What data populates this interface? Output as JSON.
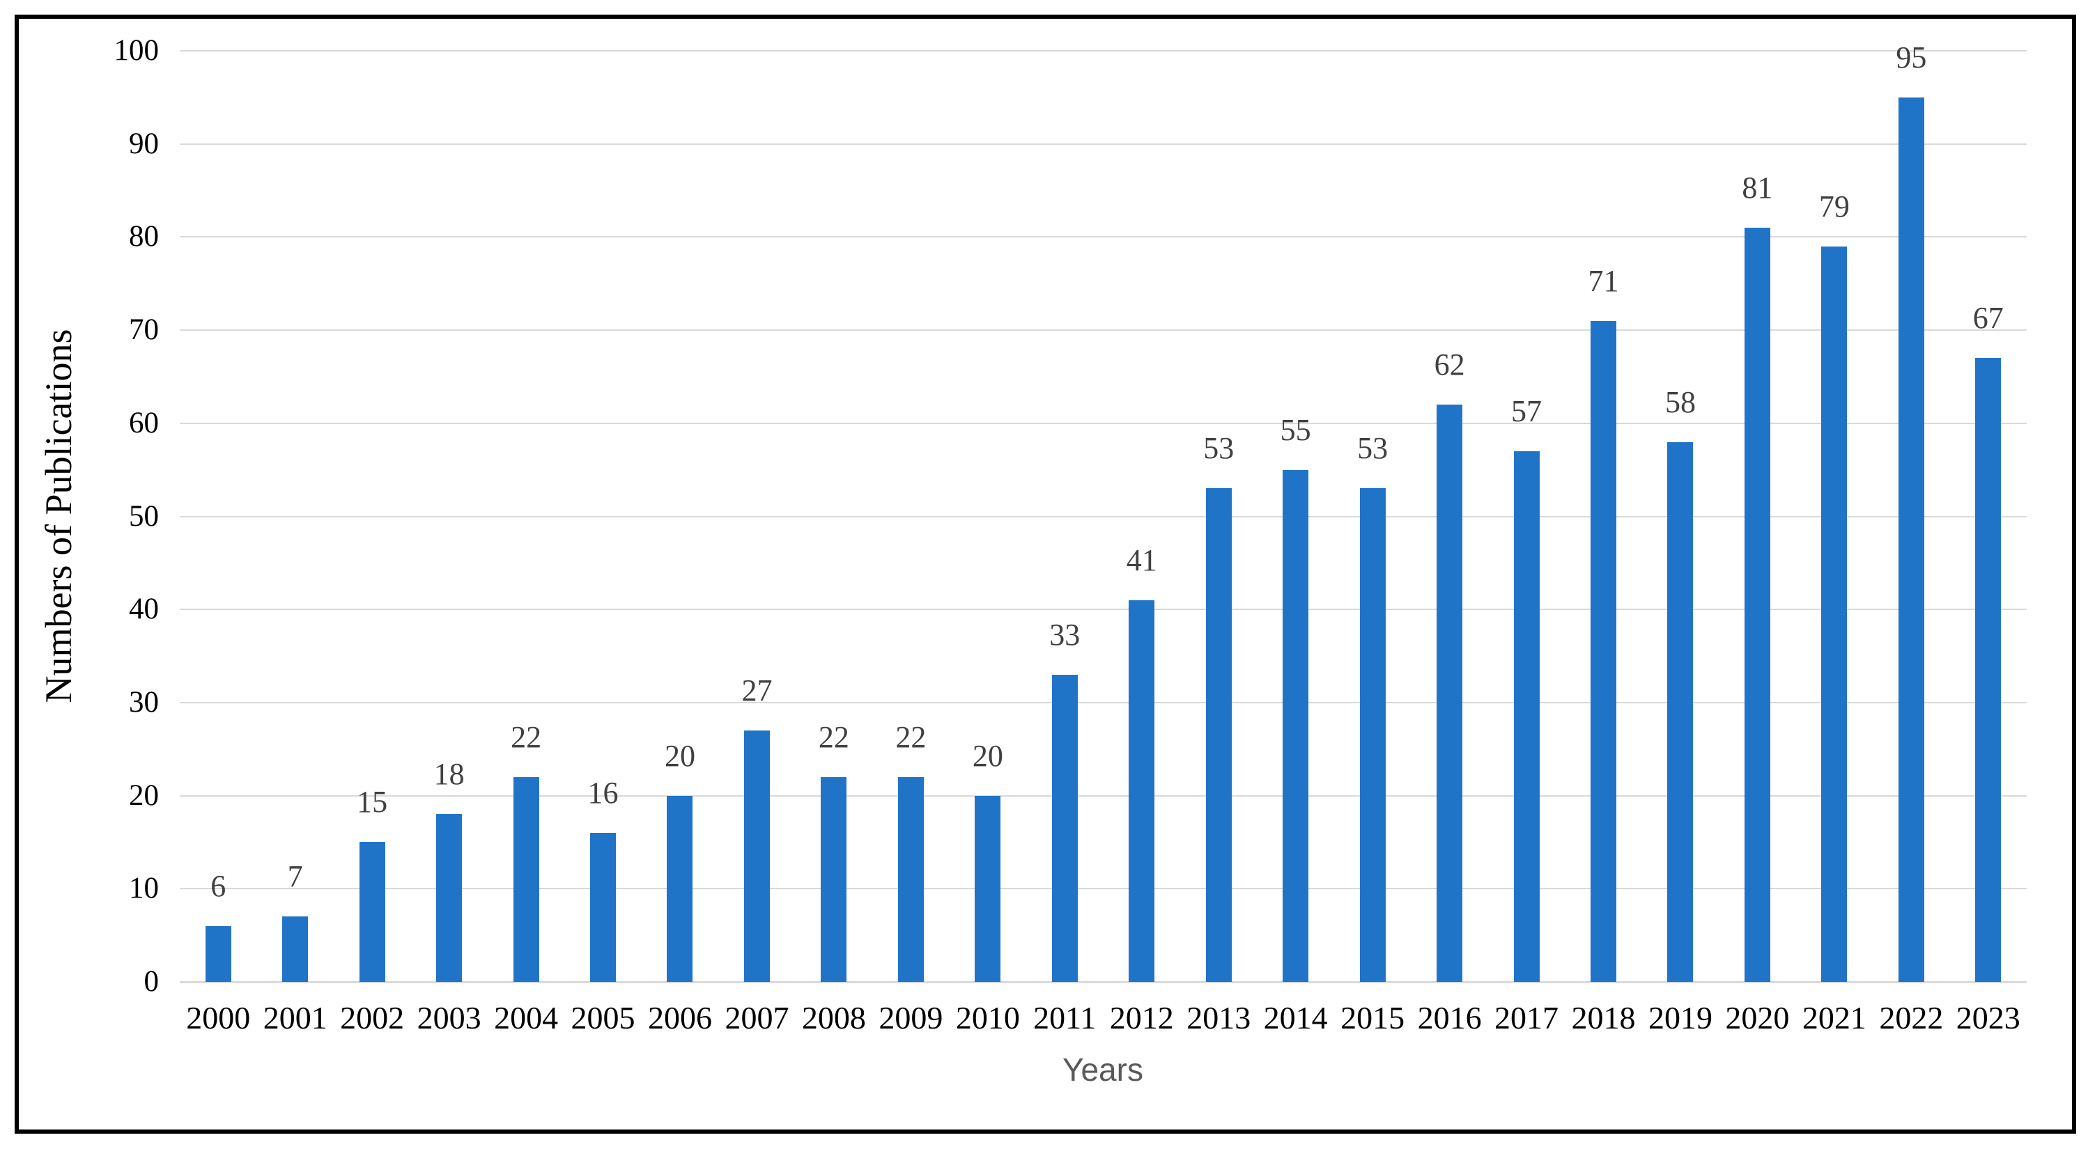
{
  "chart_data": {
    "type": "bar",
    "title": "",
    "categories": [
      "2000",
      "2001",
      "2002",
      "2003",
      "2004",
      "2005",
      "2006",
      "2007",
      "2008",
      "2009",
      "2010",
      "2011",
      "2012",
      "2013",
      "2014",
      "2015",
      "2016",
      "2017",
      "2018",
      "2019",
      "2020",
      "2021",
      "2022",
      "2023"
    ],
    "values": [
      6,
      7,
      15,
      18,
      22,
      16,
      20,
      27,
      22,
      22,
      20,
      33,
      41,
      53,
      55,
      53,
      62,
      57,
      71,
      58,
      81,
      79,
      95,
      67
    ],
    "xlabel": "Years",
    "ylabel": "Numbers of Publications",
    "ylim": [
      0,
      100
    ],
    "ytick_step": 10,
    "yticks": [
      0,
      10,
      20,
      30,
      40,
      50,
      60,
      70,
      80,
      90,
      100
    ],
    "grid": true,
    "legend": false,
    "data_labels": true,
    "colors": {
      "bar": "#2074C8",
      "gridline": "#D9D9D9",
      "axis_line": "#D9D9D9",
      "tick_label": "#000000",
      "data_label": "#404040",
      "x_axis_title": "#595959",
      "y_axis_title": "#000000",
      "frame_border": "#000000",
      "background": "#FFFFFF"
    }
  }
}
